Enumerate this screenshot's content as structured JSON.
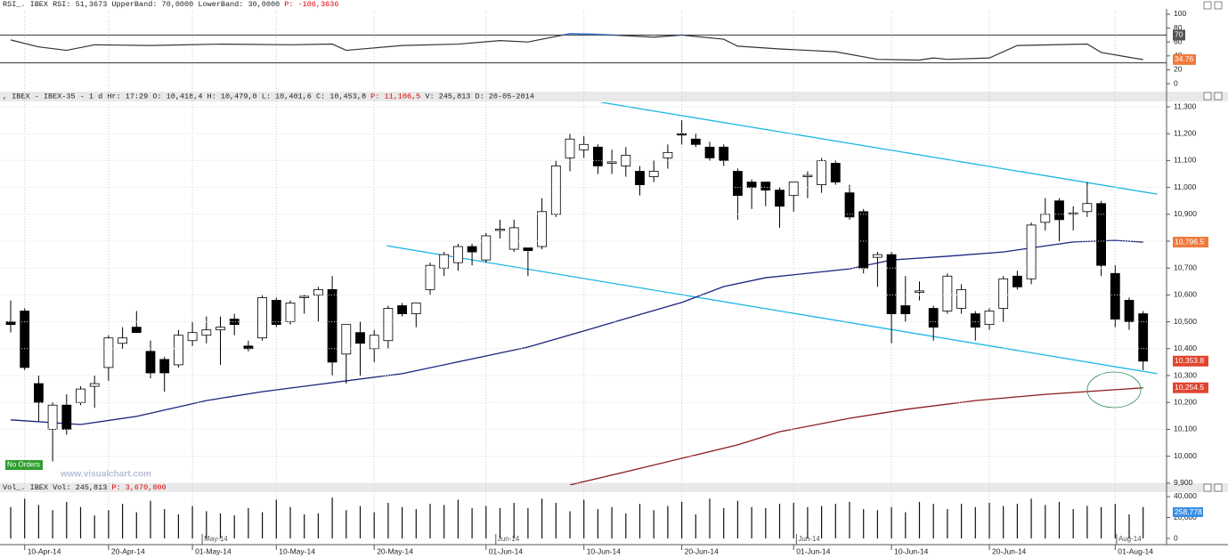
{
  "headers": {
    "rsi": {
      "text": "RSI_. IBEX RSI: 51,3673 UpperBand: 70,0000 LowerBand: 30,0000 ",
      "highlight": "P: -106,3636"
    },
    "price": {
      "text": ", IBEX - IBEX-35 - 1 d Hr: 17:29 O: 10,418,4 H: 10,479,0 L: 10,401,6 C: 10,453,8 ",
      "highlight": "P: 11,106,5",
      "tail": " V: 245,813 D: 20-05-2014"
    },
    "volume": {
      "text": "Vol_. IBEX Vol: 245,813 ",
      "highlight": "P: 3,670,800"
    }
  },
  "overlay": {
    "badge": "No Orders",
    "watermark": "www.visualchart.com"
  },
  "chart_data": [
    {
      "type": "line",
      "ylim": [
        -11.5,
        105.1
      ],
      "yticks": [
        0,
        20,
        40,
        60,
        80,
        100
      ],
      "bands": [
        70,
        30
      ],
      "band_color": "#333333",
      "highlight_color": "#2f6fd6",
      "series": [
        {
          "color": "#333333",
          "x": [
            0,
            2,
            4,
            6,
            10,
            15,
            20,
            23,
            24,
            28,
            32,
            35,
            37,
            40,
            42,
            44,
            46,
            48,
            51,
            52,
            55,
            59,
            62,
            65,
            66,
            67,
            70,
            72,
            77,
            78,
            80,
            81
          ],
          "values": [
            63,
            53,
            48,
            56,
            55,
            57,
            56,
            57,
            48,
            55,
            57,
            62,
            60,
            72,
            71,
            69,
            67,
            70,
            64,
            54,
            50,
            46,
            35,
            34,
            37,
            35,
            37,
            55,
            57,
            45,
            38,
            34.76
          ]
        }
      ],
      "value_boxes": [
        {
          "value": 70,
          "color": "#555555"
        },
        {
          "value": 34.76,
          "color": "#f07a3c"
        }
      ]
    },
    {
      "type": "candlestick",
      "ylim": [
        9892.7,
        11316.6
      ],
      "yticks": [
        {
          "value": 9900,
          "label": "9,900"
        },
        {
          "value": 10000,
          "label": "10,000"
        },
        {
          "value": 10100,
          "label": "10,100"
        },
        {
          "value": 10200,
          "label": "10,200"
        },
        {
          "value": 10300,
          "label": "10,300"
        },
        {
          "value": 10400,
          "label": "10,400"
        },
        {
          "value": 10500,
          "label": "10,500"
        },
        {
          "value": 10600,
          "label": "10,600"
        },
        {
          "value": 10700,
          "label": "10,700"
        },
        {
          "value": 10800,
          "label": "10,800"
        },
        {
          "value": 10900,
          "label": "10,900"
        },
        {
          "value": 11000,
          "label": "11,000"
        },
        {
          "value": 11100,
          "label": "11,100"
        },
        {
          "value": 11200,
          "label": "11,200"
        },
        {
          "value": 11300,
          "label": "11,300"
        }
      ],
      "grid": true,
      "open": [
        10500,
        10540,
        10270,
        10100,
        10190,
        10200,
        10260,
        10330,
        10420,
        10480,
        10390,
        10360,
        10340,
        10430,
        10450,
        10470,
        10510,
        10410,
        10440,
        10580,
        10500,
        10590,
        10600,
        10620,
        10380,
        10460,
        10400,
        10430,
        10560,
        10530,
        10620,
        10700,
        10720,
        10780,
        10730,
        10840,
        10770,
        10775,
        10780,
        10900,
        11110,
        11140,
        11150,
        11090,
        11080,
        11060,
        11040,
        11110,
        11200,
        11180,
        11150,
        11150,
        11060,
        11020,
        11020,
        10990,
        10970,
        11040,
        11010,
        11090,
        10980,
        10910,
        10740,
        10750,
        10560,
        10610,
        10550,
        10540,
        10550,
        10530,
        10490,
        10550,
        10670,
        10660,
        10870,
        10950,
        10900,
        10910,
        10940,
        10680,
        10580,
        10530
      ],
      "high": [
        10580,
        10550,
        10300,
        10200,
        10230,
        10260,
        10300,
        10450,
        10480,
        10540,
        10430,
        10370,
        10470,
        10500,
        10520,
        10520,
        10530,
        10430,
        10600,
        10590,
        10580,
        10600,
        10630,
        10670,
        10490,
        10500,
        10470,
        10560,
        10570,
        10570,
        10720,
        10760,
        10790,
        10790,
        10830,
        10880,
        10880,
        10775,
        10960,
        11100,
        11200,
        11190,
        11160,
        11140,
        11150,
        11080,
        11100,
        11160,
        11250,
        11200,
        11170,
        11160,
        11070,
        11030,
        11020,
        11000,
        11020,
        11060,
        11110,
        11100,
        11010,
        10920,
        10760,
        10760,
        10670,
        10650,
        10560,
        10680,
        10640,
        10540,
        10550,
        10670,
        10690,
        10870,
        10960,
        10960,
        10930,
        11020,
        10950,
        10710,
        10590,
        10540
      ],
      "low": [
        10460,
        10320,
        10130,
        9980,
        10080,
        10190,
        10180,
        10280,
        10400,
        10460,
        10290,
        10240,
        10330,
        10410,
        10420,
        10340,
        10450,
        10390,
        10430,
        10480,
        10490,
        10530,
        10500,
        10300,
        10270,
        10300,
        10350,
        10400,
        10520,
        10480,
        10600,
        10670,
        10690,
        10710,
        10720,
        10810,
        10760,
        10670,
        10770,
        10890,
        11060,
        11110,
        11050,
        11050,
        11040,
        10970,
        11020,
        11070,
        11160,
        11150,
        11100,
        11080,
        10880,
        10920,
        10930,
        10850,
        10910,
        10960,
        10980,
        11010,
        10880,
        10680,
        10630,
        10420,
        10500,
        10580,
        10430,
        10530,
        10530,
        10430,
        10470,
        10500,
        10620,
        10640,
        10840,
        10800,
        10840,
        10890,
        10670,
        10480,
        10470,
        10320
      ],
      "close": [
        10490,
        10330,
        10200,
        10190,
        10100,
        10250,
        10270,
        10440,
        10440,
        10460,
        10310,
        10310,
        10450,
        10460,
        10470,
        10480,
        10490,
        10400,
        10590,
        10490,
        10570,
        10595,
        10620,
        10350,
        10490,
        10420,
        10450,
        10550,
        10530,
        10570,
        10710,
        10750,
        10780,
        10760,
        10820,
        10845,
        10850,
        10765,
        10910,
        11080,
        11180,
        11160,
        11080,
        11095,
        11120,
        11010,
        11060,
        11130,
        11195,
        11160,
        11110,
        11100,
        10970,
        11000,
        10990,
        10930,
        11020,
        11045,
        11100,
        11020,
        10890,
        10700,
        10750,
        10530,
        10530,
        10615,
        10480,
        10670,
        10620,
        10480,
        10540,
        10660,
        10630,
        10860,
        10900,
        10880,
        10905,
        10940,
        10710,
        10510,
        10500,
        10353.8
      ],
      "series": [
        {
          "color": "#1a237e",
          "x": [
            0,
            5,
            9,
            14,
            18,
            22,
            28,
            34,
            37,
            41,
            44,
            48,
            51,
            54,
            60,
            63,
            67,
            71,
            76,
            79,
            81
          ],
          "values": [
            10135,
            10118,
            10148,
            10207,
            10240,
            10267,
            10307,
            10373,
            10406,
            10466,
            10512,
            10572,
            10631,
            10664,
            10697,
            10730,
            10744,
            10760,
            10797,
            10803,
            10796.5
          ]
        },
        {
          "color": "#8b1a1a",
          "x": [
            40,
            44,
            48,
            52,
            55,
            60,
            64,
            69,
            74,
            81
          ],
          "values": [
            9893,
            9942,
            9992,
            10042,
            10091,
            10141,
            10174,
            10207,
            10230,
            10254.5
          ]
        }
      ],
      "trendlines": [
        {
          "color": "#19b6e6",
          "x": [
            42.2,
            82
          ],
          "values": [
            11317,
            10975
          ]
        },
        {
          "color": "#19b6e6",
          "x": [
            26.9,
            82
          ],
          "values": [
            10783,
            10307
          ]
        }
      ],
      "value_boxes": [
        {
          "value": 10796.5,
          "label": "10,796.5",
          "color": "#f07a3c"
        },
        {
          "value": 10353.8,
          "label": "10,353.8",
          "color": "#e0452f"
        },
        {
          "value": 10254.5,
          "label": "10,254.5",
          "color": "#e0452f"
        }
      ]
    },
    {
      "type": "bar",
      "ylim": [
        -5957,
        44255
      ],
      "yticks": [
        {
          "value": 0,
          "label": "0"
        },
        {
          "value": 20000,
          "label": "20,000"
        },
        {
          "value": 40000,
          "label": "40,000"
        }
      ],
      "color": "#111111",
      "last_label": "258,778",
      "last_label_color": "#3a8ee6",
      "categories": [
        null,
        "10-Apr-14",
        null,
        null,
        null,
        null,
        null,
        "20-Apr-14",
        null,
        null,
        null,
        null,
        null,
        "01-May-14",
        null,
        null,
        null,
        null,
        null,
        "10-May-14",
        null,
        null,
        null,
        null,
        null,
        null,
        "20-May-14",
        null,
        null,
        null,
        null,
        null,
        null,
        null,
        "01-Jun-14",
        null,
        null,
        null,
        null,
        null,
        null,
        "10-Jun-14",
        null,
        null,
        null,
        null,
        null,
        null,
        "20-Jun-14",
        null,
        null,
        null,
        null,
        null,
        null,
        null,
        "01-Jun-14",
        null,
        null,
        null,
        null,
        null,
        null,
        "10-Jun-14",
        null,
        null,
        null,
        null,
        null,
        null,
        "20-Jun-14",
        null,
        null,
        null,
        null,
        null,
        null,
        null,
        null,
        "01-Aug-14",
        null,
        null
      ],
      "month_ticks": [
        {
          "value": 13.7,
          "label": "May-14"
        },
        {
          "value": 34.7,
          "label": "Jun-14"
        },
        {
          "value": 56.2,
          "label": "Jun-14"
        },
        {
          "value": 79.1,
          "label": "Aug-14"
        }
      ],
      "values": [
        30000,
        38000,
        32000,
        27000,
        35000,
        30000,
        22000,
        27000,
        33000,
        25000,
        36000,
        28000,
        23000,
        31000,
        26000,
        24000,
        22000,
        29000,
        25000,
        37000,
        30000,
        23000,
        24000,
        39000,
        27000,
        31000,
        25000,
        34000,
        30000,
        28000,
        33000,
        32000,
        37000,
        29000,
        31000,
        29000,
        34000,
        29000,
        38000,
        34000,
        26000,
        37000,
        28000,
        30000,
        24000,
        33000,
        27000,
        31000,
        35000,
        23000,
        38000,
        29000,
        36000,
        30000,
        29000,
        33000,
        34000,
        30000,
        31000,
        33000,
        35000,
        28000,
        27000,
        30000,
        25000,
        35000,
        33000,
        28000,
        33000,
        30000,
        34000,
        31000,
        33000,
        38000,
        32000,
        35000,
        28000,
        31000,
        30000,
        33000,
        23000,
        30000
      ]
    }
  ]
}
